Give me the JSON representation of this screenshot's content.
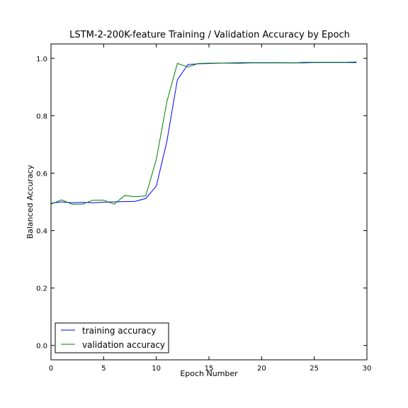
{
  "chart_data": {
    "type": "line",
    "title": "LSTM-2-200K-feature Training / Validation Accuracy by Epoch",
    "xlabel": "Epoch Number",
    "ylabel": "Balanced Accuracy",
    "xlim": [
      0,
      30
    ],
    "ylim": [
      -0.05,
      1.05
    ],
    "xticks": [
      0,
      5,
      10,
      15,
      20,
      25,
      30
    ],
    "yticks": [
      0.0,
      0.2,
      0.4,
      0.6,
      0.8,
      1.0
    ],
    "xtick_labels": [
      "0",
      "5",
      "10",
      "15",
      "20",
      "25",
      "30"
    ],
    "ytick_labels": [
      "0.0",
      "0.2",
      "0.4",
      "0.6",
      "0.8",
      "1.0"
    ],
    "grid": false,
    "legend_position": "bottom-left",
    "x": [
      0,
      1,
      2,
      3,
      4,
      5,
      6,
      7,
      8,
      9,
      10,
      11,
      12,
      13,
      14,
      15,
      16,
      17,
      18,
      19,
      20,
      21,
      22,
      23,
      24,
      25,
      26,
      27,
      28,
      29
    ],
    "series": [
      {
        "name": "training accuracy",
        "color": "#0000ff",
        "values": [
          0.495,
          0.5,
          0.497,
          0.498,
          0.497,
          0.499,
          0.5,
          0.501,
          0.502,
          0.512,
          0.555,
          0.71,
          0.925,
          0.978,
          0.981,
          0.982,
          0.983,
          0.983,
          0.983,
          0.984,
          0.984,
          0.984,
          0.984,
          0.984,
          0.984,
          0.985,
          0.985,
          0.985,
          0.985,
          0.985
        ]
      },
      {
        "name": "validation accuracy",
        "color": "#008000",
        "values": [
          0.492,
          0.507,
          0.492,
          0.492,
          0.506,
          0.506,
          0.492,
          0.522,
          0.518,
          0.521,
          0.648,
          0.848,
          0.982,
          0.97,
          0.982,
          0.983,
          0.983,
          0.984,
          0.985,
          0.985,
          0.985,
          0.985,
          0.985,
          0.984,
          0.986,
          0.986,
          0.986,
          0.986,
          0.986,
          0.987
        ]
      }
    ]
  }
}
